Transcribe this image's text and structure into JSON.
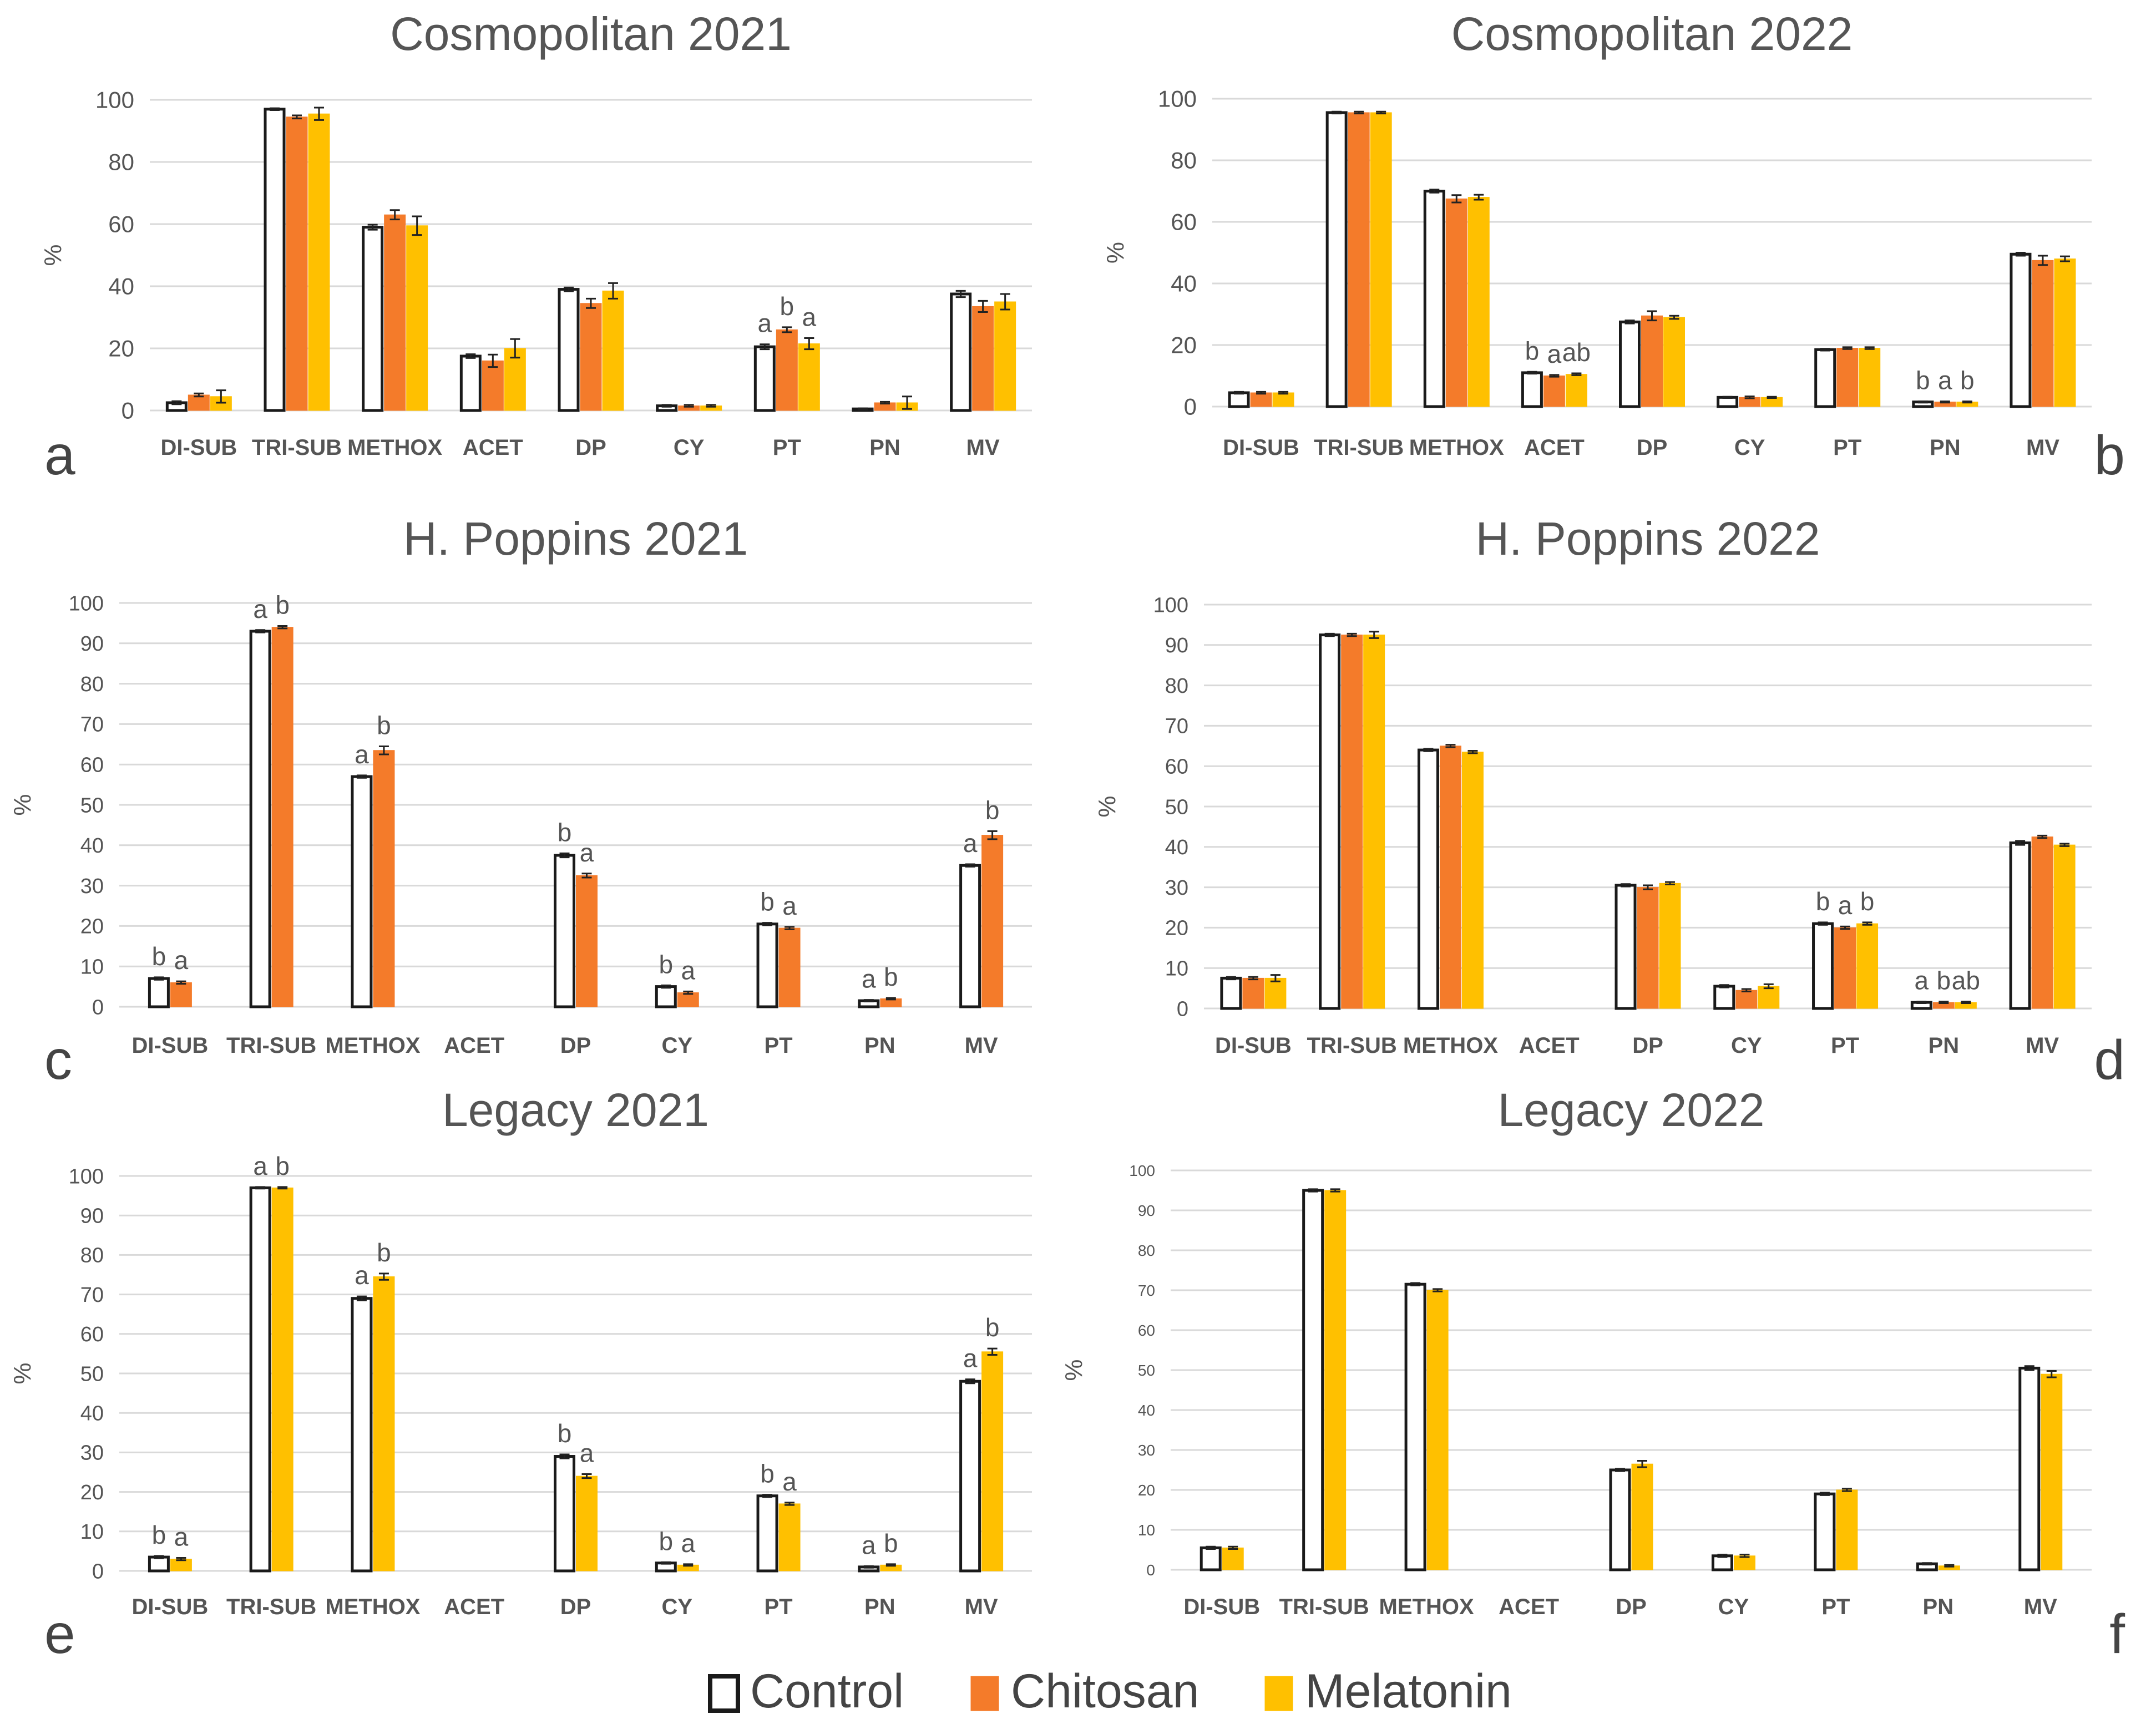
{
  "colors": {
    "control_fill": "#ffffff",
    "control_stroke": "#1a1a1a",
    "chitosan": "#f47b2a",
    "melatonin": "#ffc000",
    "grid": "#d9d9d9",
    "text": "#555555"
  },
  "legend": {
    "control": "Control",
    "chitosan": "Chitosan",
    "melatonin": "Melatonin"
  },
  "chart_data": [
    {
      "type": "bar",
      "panel": "a",
      "title": "Cosmopolitan 2021",
      "ylabel": "%",
      "ylim": [
        0,
        100
      ],
      "yticks": [
        "0",
        "20",
        "40",
        "60",
        "80",
        "100"
      ],
      "categories": [
        "DI-SUB",
        "TRI-SUB",
        "METHOX",
        "ACET",
        "DP",
        "CY",
        "PT",
        "PN",
        "MV"
      ],
      "series": [
        {
          "name": "Control",
          "values": [
            2.5,
            97,
            59,
            17.5,
            39,
            1.5,
            20.5,
            0.5,
            37.5
          ],
          "errors": [
            0.5,
            0.3,
            0.8,
            0.6,
            0.6,
            0.3,
            0.8,
            0.2,
            1.0
          ],
          "labels": [
            "",
            "",
            "",
            "",
            "",
            "",
            "a",
            "",
            ""
          ]
        },
        {
          "name": "Chitosan",
          "values": [
            5,
            94.5,
            63,
            16,
            34.5,
            1.5,
            26,
            2.5,
            33.5
          ],
          "errors": [
            0.5,
            0.5,
            1.5,
            2.0,
            1.5,
            0.3,
            0.8,
            0.3,
            1.8
          ],
          "labels": [
            "",
            "",
            "",
            "",
            "",
            "",
            "b",
            "",
            ""
          ]
        },
        {
          "name": "Melatonin",
          "values": [
            4.5,
            95.5,
            59.5,
            20,
            38.5,
            1.5,
            21.5,
            2.5,
            35
          ],
          "errors": [
            2.0,
            2.0,
            3.0,
            3.0,
            2.5,
            0.3,
            1.8,
            2.0,
            2.5
          ],
          "labels": [
            "",
            "",
            "",
            "",
            "",
            "",
            "a",
            "",
            ""
          ]
        }
      ]
    },
    {
      "type": "bar",
      "panel": "b",
      "title": "Cosmopolitan 2022",
      "ylabel": "%",
      "ylim": [
        0,
        100
      ],
      "yticks": [
        "0",
        "20",
        "40",
        "60",
        "80",
        "100"
      ],
      "categories": [
        "DI-SUB",
        "TRI-SUB",
        "METHOX",
        "ACET",
        "DP",
        "CY",
        "PT",
        "PN",
        "MV"
      ],
      "series": [
        {
          "name": "Control",
          "values": [
            4.5,
            95.5,
            70,
            11,
            27.5,
            3,
            18.5,
            1.5,
            49.5
          ],
          "errors": [
            0.3,
            0.3,
            0.5,
            0.3,
            0.5,
            0.2,
            0.3,
            0.2,
            0.5
          ],
          "labels": [
            "",
            "",
            "",
            "b",
            "",
            "",
            "",
            "b",
            ""
          ]
        },
        {
          "name": "Chitosan",
          "values": [
            4.5,
            95.5,
            67.5,
            10,
            29.5,
            3,
            19,
            1.5,
            47.5
          ],
          "errors": [
            0.3,
            0.3,
            1.2,
            0.3,
            1.5,
            0.3,
            0.3,
            0.2,
            1.5
          ],
          "labels": [
            "",
            "",
            "",
            "a",
            "",
            "",
            "",
            "a",
            ""
          ]
        },
        {
          "name": "Melatonin",
          "values": [
            4.5,
            95.5,
            68,
            10.5,
            29,
            3,
            19,
            1.5,
            48
          ],
          "errors": [
            0.3,
            0.3,
            0.8,
            0.3,
            0.5,
            0.2,
            0.3,
            0.2,
            0.8
          ],
          "labels": [
            "",
            "",
            "",
            "ab",
            "",
            "",
            "",
            "b",
            ""
          ]
        }
      ]
    },
    {
      "type": "bar",
      "panel": "c",
      "title": "H. Poppins 2021",
      "ylabel": "%",
      "ylim": [
        0,
        100
      ],
      "yticks": [
        "0",
        "10",
        "20",
        "30",
        "40",
        "50",
        "60",
        "70",
        "80",
        "90",
        "100"
      ],
      "categories": [
        "DI-SUB",
        "TRI-SUB",
        "METHOX",
        "ACET",
        "DP",
        "CY",
        "PT",
        "PN",
        "MV"
      ],
      "series": [
        {
          "name": "Control",
          "values": [
            7,
            93,
            57,
            0,
            37.5,
            5,
            20.5,
            1.5,
            35
          ],
          "errors": [
            0.3,
            0.3,
            0.3,
            0,
            0.5,
            0.3,
            0.3,
            0.2,
            0.3
          ],
          "labels": [
            "b",
            "a",
            "a",
            "",
            "b",
            "b",
            "b",
            "a",
            "a"
          ]
        },
        {
          "name": "Chitosan",
          "values": [
            6,
            94,
            63.5,
            0,
            32.5,
            3.5,
            19.5,
            2,
            42.5
          ],
          "errors": [
            0.3,
            0.3,
            1.0,
            0,
            0.5,
            0.3,
            0.3,
            0.2,
            1.0
          ],
          "labels": [
            "a",
            "b",
            "b",
            "",
            "a",
            "a",
            "a",
            "b",
            "b"
          ]
        }
      ]
    },
    {
      "type": "bar",
      "panel": "d",
      "title": "H. Poppins 2022",
      "ylabel": "%",
      "ylim": [
        0,
        100
      ],
      "yticks": [
        "0",
        "10",
        "20",
        "30",
        "40",
        "50",
        "60",
        "70",
        "80",
        "90",
        "100"
      ],
      "categories": [
        "DI-SUB",
        "TRI-SUB",
        "METHOX",
        "ACET",
        "DP",
        "CY",
        "PT",
        "PN",
        "MV"
      ],
      "series": [
        {
          "name": "Control",
          "values": [
            7.5,
            92.5,
            64,
            0,
            30.5,
            5.5,
            21,
            1.5,
            41
          ],
          "errors": [
            0.3,
            0.3,
            0.3,
            0,
            0.3,
            0.3,
            0.3,
            0.2,
            0.5
          ],
          "labels": [
            "",
            "",
            "",
            "",
            "",
            "",
            "b",
            "a",
            ""
          ]
        },
        {
          "name": "Chitosan",
          "values": [
            7.5,
            92.5,
            65,
            0,
            30,
            4.5,
            20,
            1.5,
            42.5
          ],
          "errors": [
            0.3,
            0.3,
            0.3,
            0,
            0.5,
            0.3,
            0.3,
            0.2,
            0.3
          ],
          "labels": [
            "",
            "",
            "",
            "",
            "",
            "",
            "a",
            "b",
            ""
          ]
        },
        {
          "name": "Melatonin",
          "values": [
            7.5,
            92.5,
            63.5,
            0,
            31,
            5.5,
            21,
            1.5,
            40.5
          ],
          "errors": [
            0.8,
            0.8,
            0.3,
            0,
            0.3,
            0.5,
            0.3,
            0.2,
            0.3
          ],
          "labels": [
            "",
            "",
            "",
            "",
            "",
            "",
            "b",
            "ab",
            ""
          ]
        }
      ]
    },
    {
      "type": "bar",
      "panel": "e",
      "title": "Legacy 2021",
      "ylabel": "%",
      "ylim": [
        0,
        100
      ],
      "yticks": [
        "0",
        "10",
        "20",
        "30",
        "40",
        "50",
        "60",
        "70",
        "80",
        "90",
        "100"
      ],
      "categories": [
        "DI-SUB",
        "TRI-SUB",
        "METHOX",
        "ACET",
        "DP",
        "CY",
        "PT",
        "PN",
        "MV"
      ],
      "series": [
        {
          "name": "Control",
          "values": [
            3.5,
            97,
            69,
            0,
            29,
            2,
            19,
            1,
            48
          ],
          "errors": [
            0.3,
            0.2,
            0.5,
            0,
            0.5,
            0.2,
            0.3,
            0.2,
            0.5
          ],
          "labels": [
            "b",
            "a",
            "a",
            "",
            "b",
            "b",
            "b",
            "a",
            "a"
          ]
        },
        {
          "name": "Melatonin",
          "values": [
            3,
            97,
            74.5,
            0,
            24,
            1.5,
            17,
            1.5,
            55.5
          ],
          "errors": [
            0.3,
            0.2,
            0.8,
            0,
            0.5,
            0.2,
            0.3,
            0.2,
            0.8
          ],
          "labels": [
            "a",
            "b",
            "b",
            "",
            "a",
            "a",
            "a",
            "b",
            "b"
          ]
        }
      ]
    },
    {
      "type": "bar",
      "panel": "f",
      "title": "Legacy 2022",
      "ylabel": "%",
      "ylim": [
        0,
        100
      ],
      "yticks": [
        "0",
        "10",
        "20",
        "30",
        "40",
        "50",
        "60",
        "70",
        "80",
        "90",
        "100"
      ],
      "categories": [
        "DI-SUB",
        "TRI-SUB",
        "METHOX",
        "ACET",
        "DP",
        "CY",
        "PT",
        "PN",
        "MV"
      ],
      "series": [
        {
          "name": "Control",
          "values": [
            5.5,
            95,
            71.5,
            0,
            25,
            3.5,
            19,
            1.5,
            50.5
          ],
          "errors": [
            0.3,
            0.3,
            0.3,
            0,
            0.3,
            0.3,
            0.3,
            0.2,
            0.5
          ],
          "labels": [
            "",
            "",
            "",
            "",
            "",
            "",
            "",
            "",
            ""
          ]
        },
        {
          "name": "Melatonin",
          "values": [
            5.5,
            95,
            70,
            0,
            26.5,
            3.5,
            20,
            1,
            49
          ],
          "errors": [
            0.3,
            0.3,
            0.3,
            0,
            0.8,
            0.3,
            0.3,
            0.2,
            0.8
          ],
          "labels": [
            "",
            "",
            "",
            "",
            "",
            "",
            "",
            "",
            ""
          ]
        }
      ]
    }
  ]
}
